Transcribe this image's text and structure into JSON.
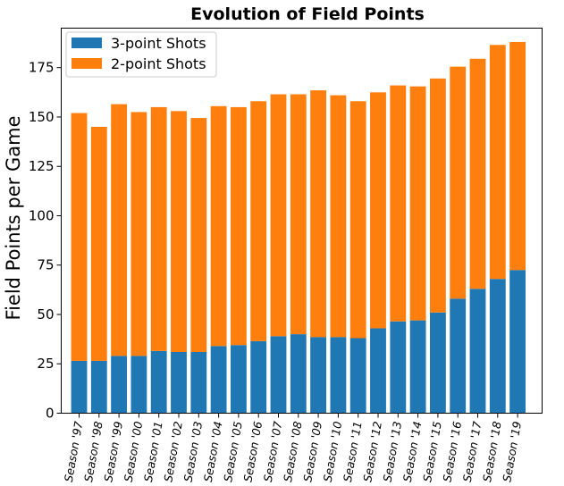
{
  "chart_data": {
    "type": "bar",
    "stacked": true,
    "title": "Evolution of Field Points",
    "xlabel": "",
    "ylabel": "Field Points per Game",
    "ylim": [
      0,
      195
    ],
    "yticks": [
      0,
      25,
      50,
      75,
      100,
      125,
      150,
      175
    ],
    "grid": false,
    "legend_position": "top-left",
    "categories": [
      "Season '97",
      "Season '98",
      "Season '99",
      "Season '00",
      "Season '01",
      "Season '02",
      "Season '03",
      "Season '04",
      "Season '05",
      "Season '06",
      "Season '07",
      "Season '08",
      "Season '09",
      "Season '10",
      "Season '11",
      "Season '12",
      "Season '13",
      "Season '14",
      "Season '15",
      "Season '16",
      "Season '17",
      "Season '18",
      "Season '19"
    ],
    "series": [
      {
        "name": "3-point Shots",
        "color": "#1f77b4",
        "values": [
          26.5,
          26.5,
          29,
          29,
          31.5,
          31,
          31,
          34,
          34.5,
          36.5,
          39,
          40,
          38.5,
          38.5,
          38,
          43,
          46.5,
          47,
          51,
          58,
          63,
          68,
          72.5
        ]
      },
      {
        "name": "2-point Shots",
        "color": "#ff7f0e",
        "values": [
          125.5,
          118.5,
          127.5,
          123.5,
          123.5,
          122,
          118.5,
          121.5,
          120.5,
          121.5,
          122.5,
          121.5,
          125,
          122.5,
          120,
          119.5,
          119.5,
          118.5,
          118.5,
          117.5,
          116.5,
          118.5,
          115.5
        ]
      }
    ]
  }
}
